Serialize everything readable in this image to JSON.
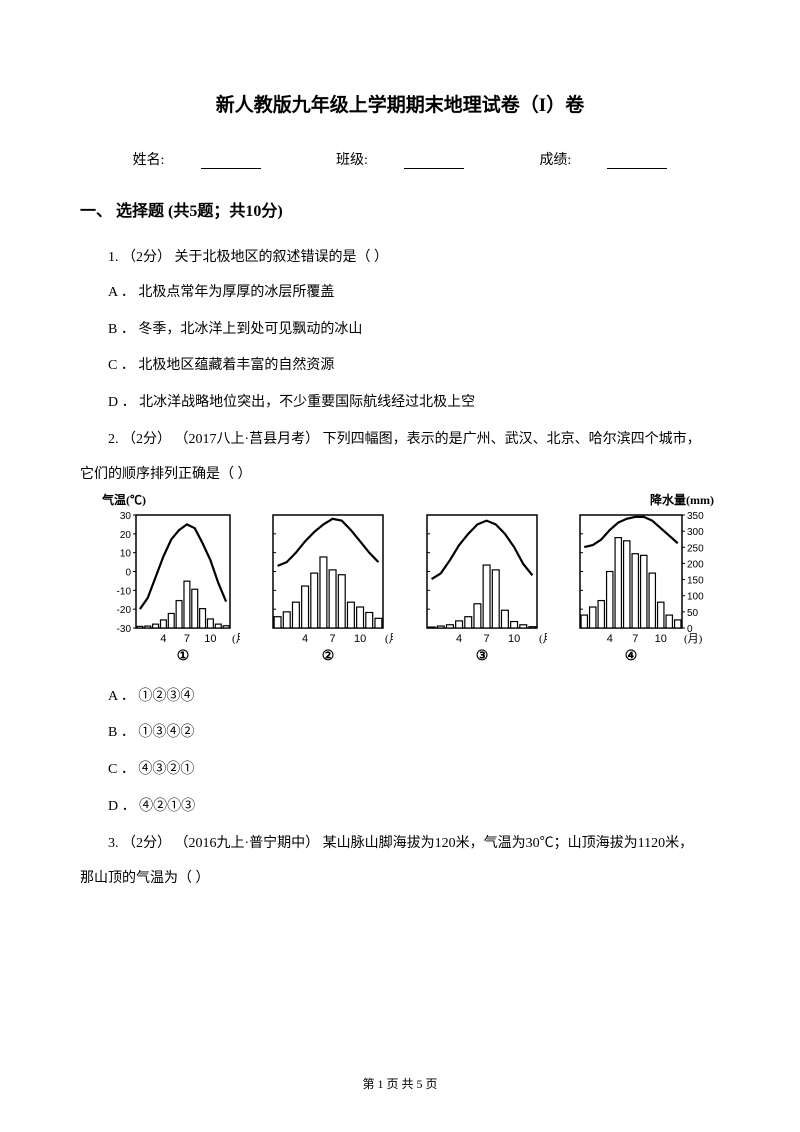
{
  "title": "新人教版九年级上学期期末地理试卷（I）卷",
  "info": {
    "name_label": "姓名:",
    "class_label": "班级:",
    "score_label": "成绩:"
  },
  "section1": {
    "header": "一、 选择题 (共5题；共10分)"
  },
  "q1": {
    "stem": "1.  （2分） 关于北极地区的叙述错误的是（    ）",
    "a": "A ． 北极点常年为厚厚的冰层所覆盖",
    "b": "B ． 冬季，北冰洋上到处可见飘动的冰山",
    "c": "C ． 北极地区蕴藏着丰富的自然资源",
    "d": "D ． 北冰洋战略地位突出，不少重要国际航线经过北极上空"
  },
  "q2": {
    "stem_line1": "2.  （2分） （2017八上·莒县月考） 下列四幅图，表示的是广州、武汉、北京、哈尔滨四个城市，",
    "stem_line2": "它们的顺序排列正确是（    ）",
    "a": "A ． ①②③④",
    "b": "B ． ①③④②",
    "c": "C ． ④③②①",
    "d": "D ． ④②①③"
  },
  "q3": {
    "stem_line1": "3.  （2分） （2016九上·普宁期中） 某山脉山脚海拔为120米，气温为30℃；山顶海拔为1120米，",
    "stem_line2": "那山顶的气温为（    ）"
  },
  "footer": "第 1 页 共 5 页",
  "charts": {
    "temp_label": "气温(℃)",
    "precip_label": "降水量(mm)",
    "x_label": "(月)",
    "x_ticks": [
      "4",
      "7",
      "10"
    ],
    "chart_labels": [
      "①",
      "②",
      "③",
      "④"
    ],
    "temp_ticks": [
      30,
      20,
      10,
      0,
      -10,
      -20,
      -30
    ],
    "precip_ticks": [
      350,
      300,
      250,
      200,
      150,
      100,
      50,
      0
    ],
    "colors": {
      "stroke": "#000000",
      "fill_bg": "#ffffff"
    },
    "data": [
      {
        "temp_curve": [
          -20,
          -14,
          -3,
          8,
          17,
          22,
          25,
          23,
          15,
          6,
          -6,
          -16
        ],
        "bars": [
          5,
          6,
          12,
          25,
          45,
          85,
          145,
          120,
          60,
          28,
          12,
          7
        ]
      },
      {
        "temp_curve": [
          3,
          5,
          10,
          16,
          21,
          25,
          28,
          27,
          22,
          16,
          10,
          5
        ],
        "bars": [
          35,
          50,
          80,
          130,
          170,
          220,
          180,
          165,
          80,
          65,
          48,
          30
        ]
      },
      {
        "temp_curve": [
          -4,
          -1,
          6,
          14,
          20,
          25,
          27,
          25,
          20,
          13,
          4,
          -2
        ],
        "bars": [
          3,
          6,
          10,
          22,
          35,
          75,
          195,
          180,
          55,
          20,
          10,
          4
        ]
      },
      {
        "temp_curve": [
          13,
          14,
          17,
          22,
          26,
          28,
          29,
          29,
          27,
          23,
          19,
          15
        ],
        "bars": [
          40,
          65,
          85,
          175,
          280,
          270,
          230,
          225,
          170,
          80,
          40,
          25
        ]
      }
    ]
  }
}
